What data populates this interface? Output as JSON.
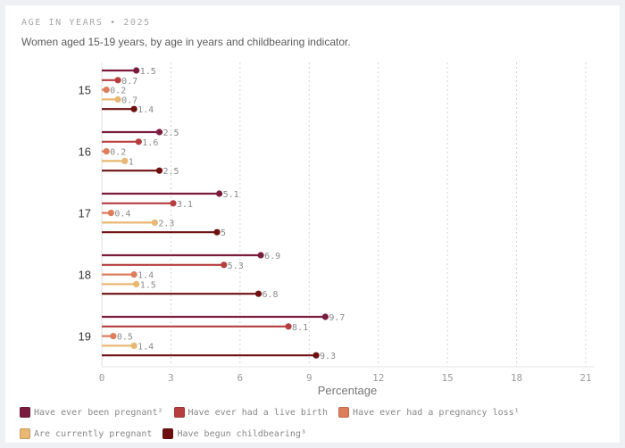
{
  "header": {
    "overline": "AGE IN YEARS • 2025",
    "subtitle": "Women aged 15-19 years, by age in years and childbearing indicator."
  },
  "chart_data": {
    "type": "bar",
    "orientation": "horizontal",
    "style": "lollipop",
    "categories": [
      "15",
      "16",
      "17",
      "18",
      "19"
    ],
    "xlabel": "Percentage",
    "ylabel": "",
    "xlim": [
      0,
      21
    ],
    "xticks": [
      0,
      3,
      6,
      9,
      12,
      15,
      18,
      21
    ],
    "grid": "vertical dotted",
    "legend_position": "bottom",
    "series": [
      {
        "name": "Have ever been pregnant²",
        "color": "#7b1c3f",
        "values": [
          1.5,
          2.5,
          5.1,
          6.9,
          9.7
        ]
      },
      {
        "name": "Have ever had a live birth",
        "color": "#b63e3e",
        "values": [
          0.7,
          1.6,
          3.1,
          5.3,
          8.1
        ]
      },
      {
        "name": "Have ever had a pregnancy loss¹",
        "color": "#dd7d5a",
        "values": [
          0.2,
          0.2,
          0.4,
          1.4,
          0.5
        ]
      },
      {
        "name": "Are currently pregnant",
        "color": "#e8b872",
        "values": [
          0.7,
          1,
          2.3,
          1.5,
          1.4
        ]
      },
      {
        "name": "Have begun childbearing³",
        "color": "#6e1010",
        "values": [
          1.4,
          2.5,
          5,
          6.8,
          9.3
        ]
      }
    ]
  }
}
